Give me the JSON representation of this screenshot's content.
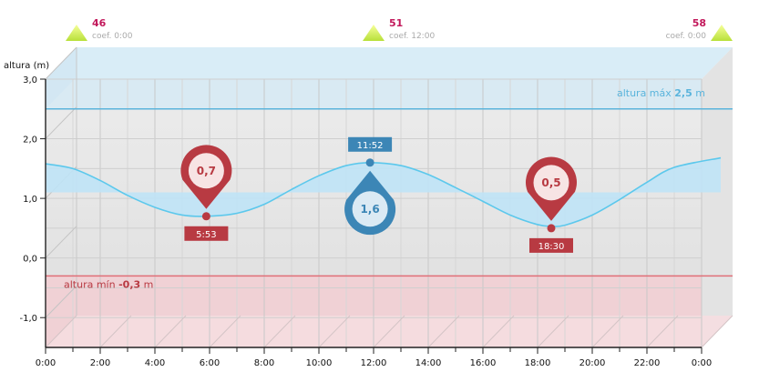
{
  "coefficients": [
    {
      "value": "46",
      "label": "coef. 0:00",
      "x_hour": 0
    },
    {
      "value": "51",
      "label": "coef. 12:00",
      "x_hour": 12
    },
    {
      "value": "58",
      "label": "coef. 0:00",
      "x_hour": 24
    }
  ],
  "chart_data": {
    "type": "line",
    "title": "",
    "ylabel": "altura (m)",
    "xlabel": "",
    "x_ticks": [
      "0:00",
      "2:00",
      "4:00",
      "6:00",
      "8:00",
      "10:00",
      "12:00",
      "14:00",
      "16:00",
      "18:00",
      "20:00",
      "22:00",
      "0:00"
    ],
    "y_ticks": [
      "-1,0",
      "0,0",
      "1,0",
      "2,0",
      "3,0"
    ],
    "ylim": [
      -1.5,
      3.0
    ],
    "xlim": [
      0,
      24
    ],
    "grid": true,
    "series": [
      {
        "x": [
          0,
          1,
          2,
          3,
          4,
          5,
          5.88,
          7,
          8,
          9,
          10,
          11,
          11.87,
          13,
          14,
          15,
          16,
          17,
          18,
          18.5,
          19,
          20,
          21,
          22,
          23,
          24.7
        ],
        "y": [
          1.58,
          1.5,
          1.3,
          1.05,
          0.85,
          0.72,
          0.7,
          0.75,
          0.9,
          1.15,
          1.38,
          1.55,
          1.6,
          1.55,
          1.4,
          1.18,
          0.95,
          0.72,
          0.56,
          0.53,
          0.55,
          0.72,
          0.98,
          1.27,
          1.52,
          1.68
        ]
      }
    ],
    "extremes": [
      {
        "type": "low",
        "time": "5:53",
        "hour": 5.88,
        "value": 0.7,
        "label": "0,7"
      },
      {
        "type": "high",
        "time": "11:52",
        "hour": 11.87,
        "value": 1.6,
        "label": "1,6"
      },
      {
        "type": "low",
        "time": "18:30",
        "hour": 18.5,
        "value": 0.5,
        "label": "0,5"
      }
    ],
    "max_line": {
      "value": 2.5,
      "text": "altura máx ",
      "value_label": "2,5",
      "unit": " m"
    },
    "min_line": {
      "value": -0.3,
      "text": "altura mín ",
      "value_label": "-0,3",
      "unit": " m"
    },
    "colors": {
      "curve": "#5cc8ec",
      "fill": "#bfe3f6",
      "max_line": "#5ab4dc",
      "min_line": "#e06f78",
      "low_marker": "#b83a42",
      "high_marker": "#3c86b6",
      "coef_value": "#c2185b"
    }
  }
}
